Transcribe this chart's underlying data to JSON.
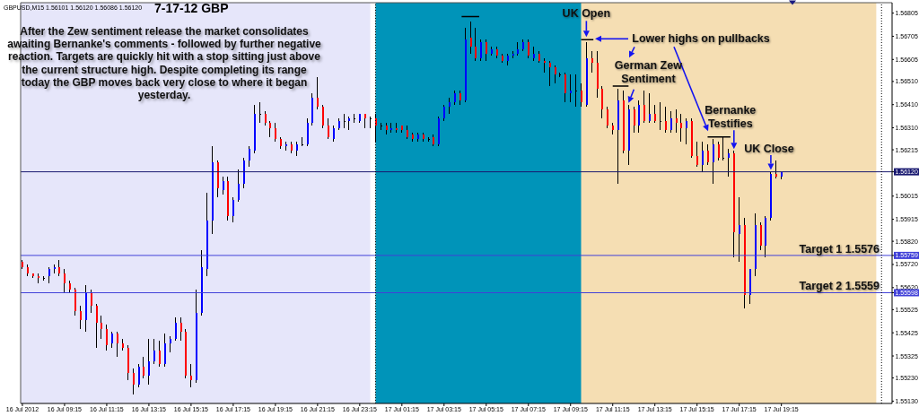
{
  "chart_data": {
    "type": "candlestick",
    "title": "7-17-12 GBP",
    "x": [
      "2012-07-16T07:15",
      "2012-07-16T07:30",
      "2012-07-16T07:45",
      "2012-07-16T08:00",
      "2012-07-16T08:15",
      "2012-07-16T08:30",
      "2012-07-16T08:45",
      "2012-07-16T09:00",
      "2012-07-16T09:15",
      "2012-07-16T09:30",
      "2012-07-16T09:45",
      "2012-07-16T10:00",
      "2012-07-16T10:15",
      "2012-07-16T10:30",
      "2012-07-16T10:45",
      "2012-07-16T11:00",
      "2012-07-16T11:15",
      "2012-07-16T11:30",
      "2012-07-16T11:45",
      "2012-07-16T12:00",
      "2012-07-16T12:15",
      "2012-07-16T12:30",
      "2012-07-16T12:45",
      "2012-07-16T13:00",
      "2012-07-16T13:15",
      "2012-07-16T13:30",
      "2012-07-16T13:45",
      "2012-07-16T14:00",
      "2012-07-16T14:15",
      "2012-07-16T14:30",
      "2012-07-16T14:45",
      "2012-07-16T15:00",
      "2012-07-16T15:15",
      "2012-07-16T15:30",
      "2012-07-16T15:45",
      "2012-07-16T16:00",
      "2012-07-16T16:15",
      "2012-07-16T16:30",
      "2012-07-16T16:45",
      "2012-07-16T17:00",
      "2012-07-16T17:15",
      "2012-07-16T17:30",
      "2012-07-16T17:45",
      "2012-07-16T18:00",
      "2012-07-16T18:15",
      "2012-07-16T18:30",
      "2012-07-16T18:45",
      "2012-07-16T19:00",
      "2012-07-16T19:15",
      "2012-07-16T19:30",
      "2012-07-16T19:45",
      "2012-07-16T20:00",
      "2012-07-16T20:15",
      "2012-07-16T20:30",
      "2012-07-16T20:45",
      "2012-07-16T21:00",
      "2012-07-16T21:15",
      "2012-07-16T21:30",
      "2012-07-16T21:45",
      "2012-07-16T22:00",
      "2012-07-16T22:15",
      "2012-07-16T22:30",
      "2012-07-16T22:45",
      "2012-07-16T23:00",
      "2012-07-16T23:15",
      "2012-07-16T23:30",
      "2012-07-16T23:45",
      "2012-07-17T00:00",
      "2012-07-17T00:15",
      "2012-07-17T00:30",
      "2012-07-17T00:45",
      "2012-07-17T01:00",
      "2012-07-17T01:15",
      "2012-07-17T01:30",
      "2012-07-17T01:45",
      "2012-07-17T02:00",
      "2012-07-17T02:15",
      "2012-07-17T02:30",
      "2012-07-17T02:45",
      "2012-07-17T03:00",
      "2012-07-17T03:15",
      "2012-07-17T03:30",
      "2012-07-17T03:45",
      "2012-07-17T04:00",
      "2012-07-17T04:15",
      "2012-07-17T04:30",
      "2012-07-17T04:45",
      "2012-07-17T05:00",
      "2012-07-17T05:15",
      "2012-07-17T05:30",
      "2012-07-17T05:45",
      "2012-07-17T06:00",
      "2012-07-17T06:15",
      "2012-07-17T06:30",
      "2012-07-17T06:45",
      "2012-07-17T07:00",
      "2012-07-17T07:15",
      "2012-07-17T07:30",
      "2012-07-17T07:45",
      "2012-07-17T08:00",
      "2012-07-17T08:15",
      "2012-07-17T08:30",
      "2012-07-17T08:45",
      "2012-07-17T09:00",
      "2012-07-17T09:15",
      "2012-07-17T09:30",
      "2012-07-17T09:45",
      "2012-07-17T10:00",
      "2012-07-17T10:15",
      "2012-07-17T10:30",
      "2012-07-17T10:45",
      "2012-07-17T11:00",
      "2012-07-17T11:15",
      "2012-07-17T11:30",
      "2012-07-17T11:45",
      "2012-07-17T12:00",
      "2012-07-17T12:15",
      "2012-07-17T12:30",
      "2012-07-17T12:45",
      "2012-07-17T13:00",
      "2012-07-17T13:15",
      "2012-07-17T13:30",
      "2012-07-17T13:45",
      "2012-07-17T14:00",
      "2012-07-17T14:15",
      "2012-07-17T14:30",
      "2012-07-17T14:45",
      "2012-07-17T15:00",
      "2012-07-17T15:15",
      "2012-07-17T15:30",
      "2012-07-17T15:45",
      "2012-07-17T16:00",
      "2012-07-17T16:15",
      "2012-07-17T16:30",
      "2012-07-17T16:45",
      "2012-07-17T17:00",
      "2012-07-17T17:15",
      "2012-07-17T17:30",
      "2012-07-17T17:45",
      "2012-07-17T18:00",
      "2012-07-17T18:15",
      "2012-07-17T18:30",
      "2012-07-17T18:45",
      "2012-07-17T19:00",
      "2012-07-17T19:15"
    ],
    "ohlc": [
      [
        1.5573,
        1.5574,
        1.557,
        1.5571
      ],
      [
        1.5571,
        1.5572,
        1.5567,
        1.5568
      ],
      [
        1.5568,
        1.5568,
        1.5566,
        1.5567
      ],
      [
        1.5567,
        1.5568,
        1.5564,
        1.5566
      ],
      [
        1.5566,
        1.5567,
        1.5565,
        1.5566
      ],
      [
        1.5567,
        1.5571,
        1.5564,
        1.557
      ],
      [
        1.557,
        1.5572,
        1.5568,
        1.5571
      ],
      [
        1.5571,
        1.5574,
        1.5567,
        1.5568
      ],
      [
        1.5568,
        1.557,
        1.556,
        1.5564
      ],
      [
        1.5564,
        1.5565,
        1.556,
        1.5561
      ],
      [
        1.5561,
        1.5562,
        1.555,
        1.5552
      ],
      [
        1.5552,
        1.5554,
        1.5544,
        1.5548
      ],
      [
        1.5548,
        1.5563,
        1.5543,
        1.556
      ],
      [
        1.556,
        1.5561,
        1.5551,
        1.5554
      ],
      [
        1.5554,
        1.5555,
        1.5536,
        1.5547
      ],
      [
        1.5547,
        1.555,
        1.554,
        1.5544
      ],
      [
        1.5544,
        1.5546,
        1.5535,
        1.5537
      ],
      [
        1.5538,
        1.5543,
        1.5536,
        1.5542
      ],
      [
        1.5542,
        1.5543,
        1.5532,
        1.5538
      ],
      [
        1.5538,
        1.554,
        1.5535,
        1.5536
      ],
      [
        1.5536,
        1.5537,
        1.5522,
        1.5525
      ],
      [
        1.5525,
        1.5527,
        1.5516,
        1.552
      ],
      [
        1.552,
        1.5529,
        1.5519,
        1.5528
      ],
      [
        1.5528,
        1.5532,
        1.5523,
        1.5524
      ],
      [
        1.5524,
        1.554,
        1.552,
        1.553
      ],
      [
        1.553,
        1.554,
        1.5529,
        1.5535
      ],
      [
        1.5535,
        1.5539,
        1.5528,
        1.5529
      ],
      [
        1.5529,
        1.5542,
        1.5528,
        1.5538
      ],
      [
        1.5538,
        1.5541,
        1.5534,
        1.554
      ],
      [
        1.554,
        1.5549,
        1.5539,
        1.5547
      ],
      [
        1.5547,
        1.5549,
        1.5539,
        1.5543
      ],
      [
        1.5543,
        1.5544,
        1.5523,
        1.5524
      ],
      [
        1.5524,
        1.5529,
        1.5519,
        1.5522
      ],
      [
        1.5522,
        1.5561,
        1.5521,
        1.5551
      ],
      [
        1.5551,
        1.5578,
        1.555,
        1.5571
      ],
      [
        1.557,
        1.5603,
        1.5567,
        1.5591
      ],
      [
        1.5591,
        1.5623,
        1.5585,
        1.5616
      ],
      [
        1.5616,
        1.5617,
        1.5601,
        1.5605
      ],
      [
        1.5604,
        1.561,
        1.5602,
        1.5608
      ],
      [
        1.5608,
        1.561,
        1.5591,
        1.5593
      ],
      [
        1.5593,
        1.5601,
        1.559,
        1.56
      ],
      [
        1.56,
        1.5613,
        1.5599,
        1.5607
      ],
      [
        1.5607,
        1.5618,
        1.5605,
        1.5617
      ],
      [
        1.5617,
        1.5623,
        1.5614,
        1.5622
      ],
      [
        1.5621,
        1.5641,
        1.562,
        1.5637
      ],
      [
        1.5637,
        1.5642,
        1.5633,
        1.5637
      ],
      [
        1.5637,
        1.5638,
        1.5632,
        1.5633
      ],
      [
        1.5633,
        1.5634,
        1.5627,
        1.5631
      ],
      [
        1.5631,
        1.5633,
        1.5625,
        1.5626
      ],
      [
        1.5626,
        1.5627,
        1.5622,
        1.5623
      ],
      [
        1.5623,
        1.5625,
        1.5621,
        1.5624
      ],
      [
        1.5624,
        1.5625,
        1.562,
        1.5621
      ],
      [
        1.5621,
        1.5625,
        1.5619,
        1.5624
      ],
      [
        1.5624,
        1.5627,
        1.5623,
        1.5624
      ],
      [
        1.5624,
        1.5635,
        1.5623,
        1.5633
      ],
      [
        1.5633,
        1.5646,
        1.5632,
        1.5644
      ],
      [
        1.5644,
        1.5653,
        1.5639,
        1.564
      ],
      [
        1.564,
        1.5641,
        1.5631,
        1.5632
      ],
      [
        1.5632,
        1.5635,
        1.5626,
        1.5627
      ],
      [
        1.5626,
        1.5632,
        1.5625,
        1.5631
      ],
      [
        1.5631,
        1.5635,
        1.563,
        1.5634
      ],
      [
        1.5634,
        1.5637,
        1.5631,
        1.5634
      ],
      [
        1.5634,
        1.5636,
        1.563,
        1.5635
      ],
      [
        1.5635,
        1.5637,
        1.5633,
        1.5635
      ],
      [
        1.5634,
        1.5637,
        1.5633,
        1.5637
      ],
      [
        1.5637,
        1.5637,
        1.5631,
        1.5635
      ],
      [
        1.5635,
        1.5636,
        1.5631,
        1.5635
      ],
      [
        1.5635,
        1.5637,
        1.5625,
        1.5632
      ],
      [
        1.5632,
        1.5633,
        1.563,
        1.5632
      ],
      [
        1.5632,
        1.5633,
        1.5628,
        1.563
      ],
      [
        1.563,
        1.5633,
        1.5629,
        1.5631
      ],
      [
        1.5631,
        1.5633,
        1.5629,
        1.563
      ],
      [
        1.5632,
        1.5632,
        1.5629,
        1.563
      ],
      [
        1.563,
        1.5632,
        1.5626,
        1.5627
      ],
      [
        1.5628,
        1.5629,
        1.5625,
        1.5626
      ],
      [
        1.5626,
        1.5629,
        1.5625,
        1.5628
      ],
      [
        1.5628,
        1.5629,
        1.5625,
        1.5626
      ],
      [
        1.5626,
        1.5627,
        1.5625,
        1.5626
      ],
      [
        1.5627,
        1.5628,
        1.5623,
        1.5624
      ],
      [
        1.5624,
        1.5636,
        1.5623,
        1.5635
      ],
      [
        1.5635,
        1.5641,
        1.5634,
        1.564
      ],
      [
        1.564,
        1.5644,
        1.5637,
        1.5642
      ],
      [
        1.5642,
        1.5647,
        1.5641,
        1.5646
      ],
      [
        1.5646,
        1.5647,
        1.5641,
        1.5643
      ],
      [
        1.5643,
        1.5674,
        1.5642,
        1.5669
      ],
      [
        1.567,
        1.5677,
        1.5663,
        1.5666
      ],
      [
        1.5666,
        1.5674,
        1.566,
        1.5661
      ],
      [
        1.5661,
        1.5669,
        1.566,
        1.5668
      ],
      [
        1.5668,
        1.5669,
        1.566,
        1.5663
      ],
      [
        1.5663,
        1.5666,
        1.5662,
        1.5665
      ],
      [
        1.5665,
        1.5666,
        1.5661,
        1.5662
      ],
      [
        1.5662,
        1.5663,
        1.5659,
        1.566
      ],
      [
        1.566,
        1.5663,
        1.5658,
        1.5662
      ],
      [
        1.5662,
        1.5664,
        1.5661,
        1.5663
      ],
      [
        1.5663,
        1.5668,
        1.5662,
        1.5665
      ],
      [
        1.5665,
        1.5669,
        1.5664,
        1.5668
      ],
      [
        1.5668,
        1.5669,
        1.5661,
        1.5662
      ],
      [
        1.5661,
        1.5666,
        1.566,
        1.5663
      ],
      [
        1.5663,
        1.5664,
        1.5659,
        1.566
      ],
      [
        1.566,
        1.5661,
        1.5655,
        1.5659
      ],
      [
        1.5659,
        1.566,
        1.5649,
        1.5657
      ],
      [
        1.5657,
        1.5658,
        1.565,
        1.5654
      ],
      [
        1.5654,
        1.5655,
        1.5653,
        1.5654
      ],
      [
        1.5654,
        1.5655,
        1.5642,
        1.5646
      ],
      [
        1.5646,
        1.5654,
        1.5642,
        1.5647
      ],
      [
        1.5647,
        1.5654,
        1.564,
        1.5647
      ],
      [
        1.5647,
        1.565,
        1.564,
        1.5642
      ],
      [
        1.5641,
        1.5668,
        1.564,
        1.5661
      ],
      [
        1.5661,
        1.5664,
        1.5655,
        1.5659
      ],
      [
        1.5659,
        1.5664,
        1.5644,
        1.5648
      ],
      [
        1.5648,
        1.5649,
        1.5635,
        1.5639
      ],
      [
        1.5639,
        1.564,
        1.5631,
        1.5632
      ],
      [
        1.5632,
        1.5633,
        1.5628,
        1.563
      ],
      [
        1.563,
        1.5648,
        1.5607,
        1.5643
      ],
      [
        1.5643,
        1.5647,
        1.562,
        1.5621
      ],
      [
        1.5621,
        1.5641,
        1.5615,
        1.5639
      ],
      [
        1.5639,
        1.564,
        1.5629,
        1.5632
      ],
      [
        1.5632,
        1.5643,
        1.5629,
        1.5641
      ],
      [
        1.5641,
        1.5647,
        1.5633,
        1.5634
      ],
      [
        1.5634,
        1.5646,
        1.5633,
        1.5637
      ],
      [
        1.5637,
        1.5641,
        1.5633,
        1.5634
      ],
      [
        1.5634,
        1.5642,
        1.563,
        1.5634
      ],
      [
        1.5634,
        1.564,
        1.5629,
        1.563
      ],
      [
        1.563,
        1.5638,
        1.5629,
        1.5635
      ],
      [
        1.5635,
        1.5639,
        1.5629,
        1.5633
      ],
      [
        1.5633,
        1.5637,
        1.5625,
        1.5631
      ],
      [
        1.5631,
        1.5635,
        1.5624,
        1.5634
      ],
      [
        1.5634,
        1.5635,
        1.5618,
        1.5619
      ],
      [
        1.5619,
        1.5625,
        1.5614,
        1.5615
      ],
      [
        1.5615,
        1.5625,
        1.5612,
        1.5621
      ],
      [
        1.5621,
        1.5624,
        1.5615,
        1.5616
      ],
      [
        1.5616,
        1.5626,
        1.5607,
        1.5624
      ],
      [
        1.5624,
        1.5625,
        1.5617,
        1.5618
      ],
      [
        1.5618,
        1.5627,
        1.5617,
        1.5618
      ],
      [
        1.5618,
        1.5622,
        1.561,
        1.562
      ],
      [
        1.562,
        1.5621,
        1.5575,
        1.5586
      ],
      [
        1.5585,
        1.5601,
        1.5573,
        1.5589
      ],
      [
        1.5589,
        1.5592,
        1.5553,
        1.5559
      ],
      [
        1.5559,
        1.557,
        1.5555,
        1.557
      ],
      [
        1.557,
        1.5594,
        1.5567,
        1.5589
      ],
      [
        1.5589,
        1.559,
        1.5578,
        1.558
      ],
      [
        1.558,
        1.5593,
        1.5575,
        1.5592
      ],
      [
        1.5592,
        1.5612,
        1.5591,
        1.5611
      ],
      [
        1.5611,
        1.5617,
        1.5609,
        1.561
      ],
      [
        1.56101,
        1.5612,
        1.56086,
        1.5612
      ]
    ],
    "colors": [
      "#ff0000",
      "#ff0000",
      "#ff0000",
      "#ff0000",
      "#000000",
      "#0000ff",
      "#0000ff",
      "#ff0000",
      "#ff0000",
      "#ff0000",
      "#ff0000",
      "#ff0000",
      "#0000ff",
      "#ff0000",
      "#ff0000",
      "#ff0000",
      "#ff0000",
      "#0000ff",
      "#ff0000",
      "#ff0000",
      "#ff0000",
      "#ff0000",
      "#0000ff",
      "#ff0000",
      "#0000ff",
      "#0000ff",
      "#ff0000",
      "#0000ff",
      "#0000ff",
      "#0000ff",
      "#ff0000",
      "#ff0000",
      "#ff0000",
      "#0000ff",
      "#0000ff",
      "#0000ff",
      "#0000ff",
      "#ff0000",
      "#0000ff",
      "#ff0000",
      "#0000ff",
      "#0000ff",
      "#0000ff",
      "#0000ff",
      "#0000ff",
      "#000000",
      "#ff0000",
      "#ff0000",
      "#ff0000",
      "#ff0000",
      "#0000ff",
      "#ff0000",
      "#0000ff",
      "#000000",
      "#0000ff",
      "#0000ff",
      "#ff0000",
      "#ff0000",
      "#ff0000",
      "#0000ff",
      "#0000ff",
      "#000000",
      "#0000ff",
      "#000000",
      "#0000ff",
      "#ff0000",
      "#000000",
      "#ff0000",
      "#000000",
      "#ff0000",
      "#0000ff",
      "#ff0000",
      "#ff0000",
      "#ff0000",
      "#ff0000",
      "#0000ff",
      "#ff0000",
      "#000000",
      "#ff0000",
      "#0000ff",
      "#0000ff",
      "#0000ff",
      "#0000ff",
      "#ff0000",
      "#0000ff",
      "#ff0000",
      "#ff0000",
      "#0000ff",
      "#ff0000",
      "#0000ff",
      "#ff0000",
      "#ff0000",
      "#0000ff",
      "#0000ff",
      "#0000ff",
      "#0000ff",
      "#ff0000",
      "#0000ff",
      "#ff0000",
      "#ff0000",
      "#ff0000",
      "#ff0000",
      "#000000",
      "#ff0000",
      "#0000ff",
      "#000000",
      "#ff0000",
      "#0000ff",
      "#ff0000",
      "#ff0000",
      "#ff0000",
      "#ff0000",
      "#ff0000",
      "#0000ff",
      "#ff0000",
      "#0000ff",
      "#ff0000",
      "#0000ff",
      "#ff0000",
      "#0000ff",
      "#ff0000",
      "#000000",
      "#ff0000",
      "#0000ff",
      "#ff0000",
      "#ff0000",
      "#0000ff",
      "#ff0000",
      "#ff0000",
      "#0000ff",
      "#ff0000",
      "#0000ff",
      "#ff0000",
      "#000000",
      "#0000ff",
      "#ff0000",
      "#0000ff",
      "#ff0000",
      "#0000ff",
      "#0000ff",
      "#ff0000",
      "#0000ff",
      "#0000ff",
      "#ff0000",
      "#0000ff"
    ],
    "color": "#000000",
    "xlim": [
      "2012-07-16T07:10",
      "2012-07-18T00:30"
    ],
    "xticks": [
      {
        "value": "2012-07-16T07:15",
        "label": "16 Jul 2012"
      },
      {
        "value": "2012-07-16T09:15",
        "label": "16 Jul 09:15"
      },
      {
        "value": "2012-07-16T11:15",
        "label": "16 Jul 11:15"
      },
      {
        "value": "2012-07-16T13:15",
        "label": "16 Jul 13:15"
      },
      {
        "value": "2012-07-16T15:15",
        "label": "16 Jul 15:15"
      },
      {
        "value": "2012-07-16T17:15",
        "label": "16 Jul 17:15"
      },
      {
        "value": "2012-07-16T19:15",
        "label": "16 Jul 19:15"
      },
      {
        "value": "2012-07-16T21:15",
        "label": "16 Jul 21:15"
      },
      {
        "value": "2012-07-16T23:15",
        "label": "16 Jul 23:15"
      },
      {
        "value": "2012-07-17T01:15",
        "label": "17 Jul 01:15"
      },
      {
        "value": "2012-07-17T03:15",
        "label": "17 Jul 03:15"
      },
      {
        "value": "2012-07-17T05:15",
        "label": "17 Jul 05:15"
      },
      {
        "value": "2012-07-17T07:15",
        "label": "17 Jul 07:15"
      },
      {
        "value": "2012-07-17T09:15",
        "label": "17 Jul 09:15"
      },
      {
        "value": "2012-07-17T11:15",
        "label": "17 Jul 11:15"
      },
      {
        "value": "2012-07-17T13:15",
        "label": "17 Jul 13:15"
      },
      {
        "value": "2012-07-17T15:15",
        "label": "17 Jul 15:15"
      },
      {
        "value": "2012-07-17T17:15",
        "label": "17 Jul 17:15"
      },
      {
        "value": "2012-07-17T19:15",
        "label": "17 Jul 19:15"
      }
    ],
    "ylim": [
      1.5512,
      1.5685
    ],
    "yticks": [
      1.56805,
      1.56705,
      1.56605,
      {
        "value": 1.5651,
        "label": "1.56510"
      },
      {
        "value": 1.5641,
        "label": "1.56410"
      },
      {
        "value": 1.5631,
        "label": "1.56310"
      },
      1.56215,
      {
        "value": 1.5612,
        "label": "1.56120"
      },
      1.56015,
      1.55915,
      {
        "value": 1.5582,
        "label": "1.55820"
      },
      1.55759,
      {
        "value": 1.5572,
        "label": "1.55720"
      },
      {
        "value": 1.5562,
        "label": "1.55620"
      },
      1.55598,
      1.55525,
      1.55425,
      1.55325,
      {
        "value": 1.5523,
        "label": "1.55230"
      },
      {
        "value": 1.5513,
        "label": "1.55130"
      }
    ],
    "series": [
      {
        "type": "line",
        "color": "#000000",
        "x": [
          "2012-07-17T04:05",
          "2012-07-17T04:55",
          "2012-07-17T05:00",
          "2012-07-17T09:45",
          "2012-07-17T10:20",
          "2012-07-17T10:25",
          "2012-07-17T11:15",
          "2012-07-17T12:00",
          "2012-07-17T12:05",
          "2012-07-17T15:45",
          "2012-07-17T16:50"
        ],
        "values": [
          1.5679,
          1.5679,
          null,
          1.5669,
          1.5669,
          null,
          1.5649,
          1.5649,
          null,
          1.5627,
          1.5627
        ]
      }
    ],
    "bands": [
      {
        "axis": "x",
        "from": "2012-07-16T07:10",
        "to": "2012-07-16T23:45",
        "color": "#e6e6fa"
      },
      {
        "axis": "x",
        "from": "2012-07-17T00:00",
        "to": "2012-07-17T23:45",
        "color": "#f5deb3"
      },
      {
        "axis": "x",
        "from": "2012-07-17T00:00",
        "to": "2012-07-17T09:45",
        "color": "#0094b9"
      }
    ],
    "ref_lines": [
      {
        "axis": "y",
        "value": 1.5612,
        "color": "#191970"
      },
      {
        "axis": "y",
        "value": 1.55759,
        "label": "Target 1 1.5576",
        "color": "#4040d8"
      },
      {
        "axis": "y",
        "value": 1.55598,
        "label": "Target 2 1.5559",
        "color": "#4040d8"
      },
      {
        "axis": "x",
        "value": "2012-07-17T00:00",
        "line_style": "dotted",
        "color": "#000000"
      },
      {
        "axis": "x",
        "value": "2012-07-18T00:00",
        "line_style": "dotted",
        "color": "#000000"
      }
    ],
    "annotations": [
      "GBPUSD,M15 1.56101 1.56120 1.56086 1.56120",
      "After the Zew sentiment release the market consolidates awaiting Bernanke's comments - followed by further negative reaction. Targets are quickly hit with a stop sitting just above the current structure high. Despite completing its range today the GBP moves back very close to where it began yesterday.",
      {
        "text": "UK Open",
        "x": "2012-07-17T10:00",
        "y": 1.5669
      },
      "Lower highs on pullbacks",
      {
        "text": "German Zew Sentiment",
        "x": "2012-07-17T12:00",
        "y": 1.5641
      },
      {
        "text": "Bernanke Testifies",
        "x": "2012-07-17T17:00",
        "y": 1.5621
      },
      {
        "text": "UK Close",
        "x": "2012-07-17T18:45",
        "y": 1.5612
      }
    ]
  }
}
